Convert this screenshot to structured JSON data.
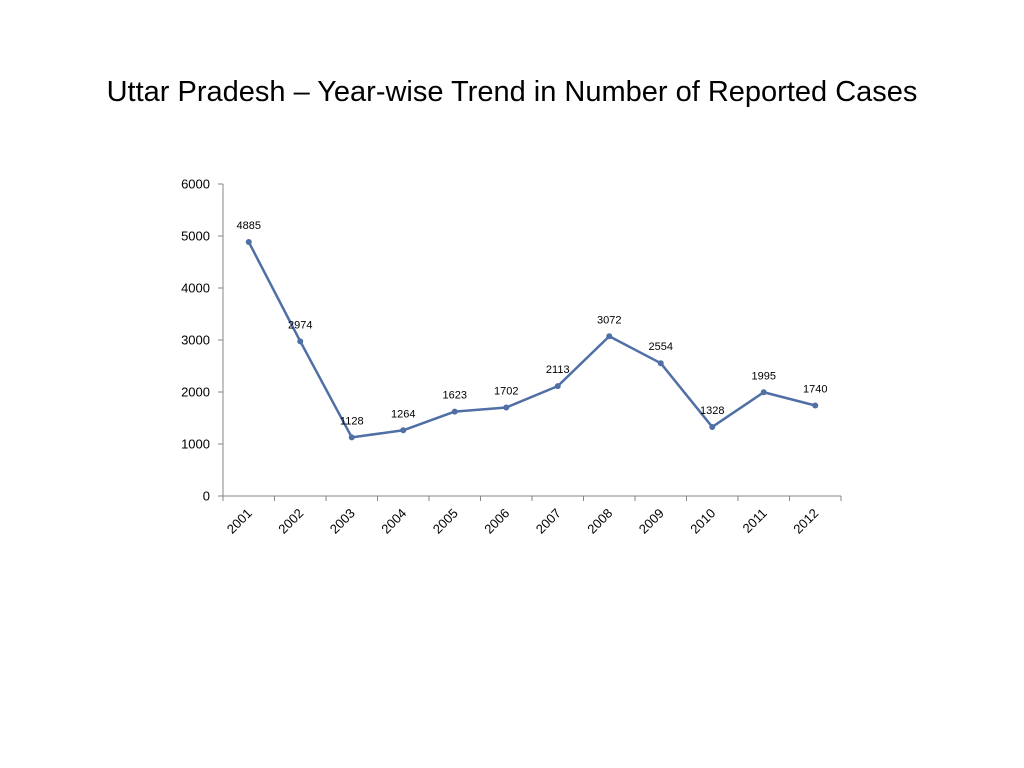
{
  "slide": {
    "title": "Uttar Pradesh – Year-wise Trend in Number of Reported Cases"
  },
  "chart_data": {
    "type": "line",
    "title": "",
    "xlabel": "",
    "ylabel": "",
    "categories": [
      "2001",
      "2002",
      "2003",
      "2004",
      "2005",
      "2006",
      "2007",
      "2008",
      "2009",
      "2010",
      "2011",
      "2012"
    ],
    "series": [
      {
        "values": [
          4885,
          2974,
          1128,
          1264,
          1623,
          1702,
          2113,
          3072,
          2554,
          1328,
          1995,
          1740
        ],
        "color": "#4F6FA5"
      }
    ],
    "ylim": [
      0,
      6000
    ],
    "yticks": [
      0,
      1000,
      2000,
      3000,
      4000,
      5000,
      6000
    ],
    "data_labels": true,
    "grid": false,
    "legend": "none",
    "axis_color": "#868686"
  }
}
